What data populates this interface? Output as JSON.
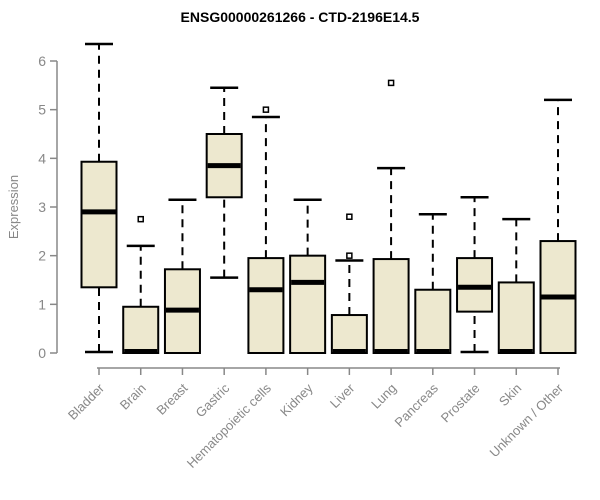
{
  "chart_data": {
    "type": "boxplot",
    "title": "ENSG00000261266 - CTD-2196E14.5",
    "ylabel": "Expression",
    "xlabel": "",
    "yticks": [
      0,
      1,
      2,
      3,
      4,
      5,
      6
    ],
    "ylim": [
      0,
      6.5
    ],
    "grid": false,
    "legend": null,
    "categories": [
      "Bladder",
      "Brain",
      "Breast",
      "Gastric",
      "Hematopoietic cells",
      "Kidney",
      "Liver",
      "Lung",
      "Pancreas",
      "Prostate",
      "Skin",
      "Unknown / Other"
    ],
    "series": [
      {
        "name": "Bladder",
        "min": 0.02,
        "q1": 1.35,
        "median": 2.9,
        "q3": 3.93,
        "max": 6.35,
        "outliers": []
      },
      {
        "name": "Brain",
        "min": 0,
        "q1": 0,
        "median": 0.03,
        "q3": 0.95,
        "max": 2.2,
        "outliers": [
          2.75
        ]
      },
      {
        "name": "Breast",
        "min": 0,
        "q1": 0,
        "median": 0.88,
        "q3": 1.72,
        "max": 3.15,
        "outliers": []
      },
      {
        "name": "Gastric",
        "min": 1.55,
        "q1": 3.2,
        "median": 3.85,
        "q3": 4.5,
        "max": 5.45,
        "outliers": []
      },
      {
        "name": "Hematopoietic cells",
        "min": 0,
        "q1": 0,
        "median": 1.3,
        "q3": 1.95,
        "max": 4.85,
        "outliers": [
          5.0
        ]
      },
      {
        "name": "Kidney",
        "min": 0,
        "q1": 0,
        "median": 1.45,
        "q3": 2.0,
        "max": 3.15,
        "outliers": []
      },
      {
        "name": "Liver",
        "min": 0,
        "q1": 0,
        "median": 0.03,
        "q3": 0.78,
        "max": 1.9,
        "outliers": [
          2.0,
          2.8
        ]
      },
      {
        "name": "Lung",
        "min": 0,
        "q1": 0,
        "median": 0.03,
        "q3": 1.93,
        "max": 3.8,
        "outliers": [
          5.55
        ]
      },
      {
        "name": "Pancreas",
        "min": 0,
        "q1": 0,
        "median": 0.03,
        "q3": 1.3,
        "max": 2.85,
        "outliers": []
      },
      {
        "name": "Prostate",
        "min": 0.02,
        "q1": 0.85,
        "median": 1.35,
        "q3": 1.95,
        "max": 3.2,
        "outliers": []
      },
      {
        "name": "Skin",
        "min": 0,
        "q1": 0,
        "median": 0.03,
        "q3": 1.45,
        "max": 2.75,
        "outliers": []
      },
      {
        "name": "Unknown / Other",
        "min": 0,
        "q1": 0,
        "median": 1.15,
        "q3": 2.3,
        "max": 5.2,
        "outliers": []
      }
    ]
  },
  "colors": {
    "background": "#FFFFFF",
    "box_fill": "#EDE8CF",
    "box_border": "#000000",
    "median": "#000000",
    "whisker": "#000000",
    "outlier": "#000000",
    "axis": "#888888",
    "tick_label": "#888888",
    "axis_label": "#888888",
    "title": "#000000"
  }
}
